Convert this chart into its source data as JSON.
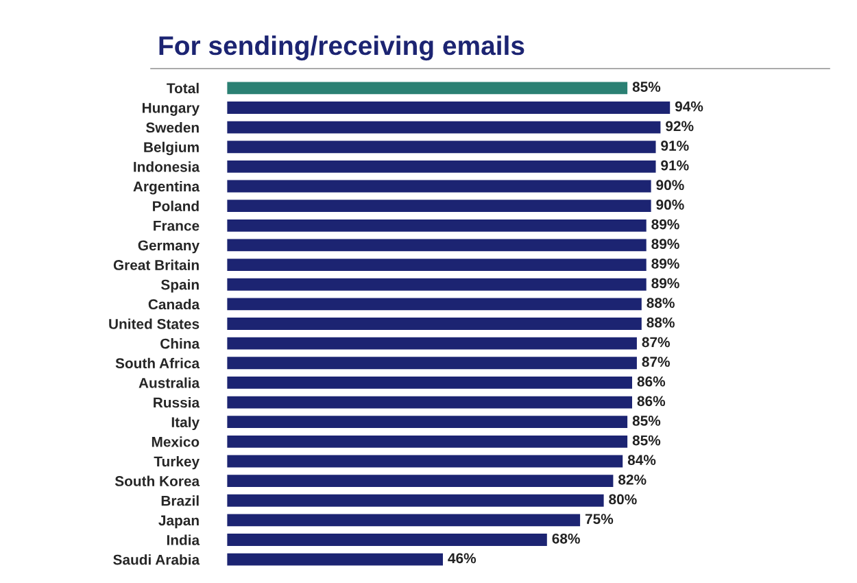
{
  "chart_data": {
    "type": "bar",
    "orientation": "horizontal",
    "title": "For sending/receiving emails",
    "categories": [
      "Total",
      "Hungary",
      "Sweden",
      "Belgium",
      "Indonesia",
      "Argentina",
      "Poland",
      "France",
      "Germany",
      "Great Britain",
      "Spain",
      "Canada",
      "United States",
      "China",
      "South Africa",
      "Australia",
      "Russia",
      "Italy",
      "Mexico",
      "Turkey",
      "South Korea",
      "Brazil",
      "Japan",
      "India",
      "Saudi Arabia"
    ],
    "values": [
      85,
      94,
      92,
      91,
      91,
      90,
      90,
      89,
      89,
      89,
      89,
      88,
      88,
      87,
      87,
      86,
      86,
      85,
      85,
      84,
      82,
      80,
      75,
      68,
      46
    ],
    "value_labels": [
      "85%",
      "94%",
      "92%",
      "91%",
      "91%",
      "90%",
      "90%",
      "89%",
      "89%",
      "89%",
      "89%",
      "88%",
      "88%",
      "87%",
      "87%",
      "86%",
      "86%",
      "85%",
      "85%",
      "84%",
      "82%",
      "80%",
      "75%",
      "68%",
      "46%"
    ],
    "colors": [
      "#2b8073",
      "#1c2472",
      "#1c2472",
      "#1c2472",
      "#1c2472",
      "#1c2472",
      "#1c2472",
      "#1c2472",
      "#1c2472",
      "#1c2472",
      "#1c2472",
      "#1c2472",
      "#1c2472",
      "#1c2472",
      "#1c2472",
      "#1c2472",
      "#1c2472",
      "#1c2472",
      "#1c2472",
      "#1c2472",
      "#1c2472",
      "#1c2472",
      "#1c2472",
      "#1c2472",
      "#1c2472"
    ]
  }
}
